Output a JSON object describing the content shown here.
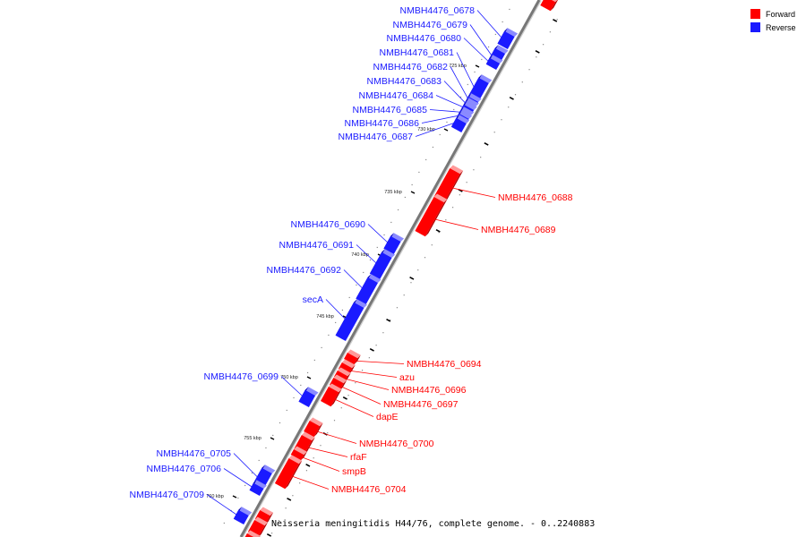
{
  "legend": {
    "forward": {
      "label": "Forward",
      "color": "#ff0000"
    },
    "reverse": {
      "label": "Reverse",
      "color": "#1a1aff"
    }
  },
  "caption": "Neisseria meningitidis H44/76, complete genome. - 0..2240883",
  "ticks": [
    "725 kbp",
    "730 kbp",
    "735 kbp",
    "740 kbp",
    "745 kbp",
    "750 kbp",
    "755 kbp",
    "760 kbp"
  ],
  "genes": [
    {
      "name": "NMBH4476_0678",
      "strand": "reverse"
    },
    {
      "name": "NMBH4476_0679",
      "strand": "reverse"
    },
    {
      "name": "NMBH4476_0680",
      "strand": "reverse"
    },
    {
      "name": "NMBH4476_0681",
      "strand": "reverse"
    },
    {
      "name": "NMBH4476_0682",
      "strand": "reverse"
    },
    {
      "name": "NMBH4476_0683",
      "strand": "reverse"
    },
    {
      "name": "NMBH4476_0684",
      "strand": "reverse"
    },
    {
      "name": "NMBH4476_0685",
      "strand": "reverse"
    },
    {
      "name": "NMBH4476_0686",
      "strand": "reverse"
    },
    {
      "name": "NMBH4476_0687",
      "strand": "reverse"
    },
    {
      "name": "NMBH4476_0688",
      "strand": "forward"
    },
    {
      "name": "NMBH4476_0689",
      "strand": "forward"
    },
    {
      "name": "NMBH4476_0690",
      "strand": "reverse"
    },
    {
      "name": "NMBH4476_0691",
      "strand": "reverse"
    },
    {
      "name": "NMBH4476_0692",
      "strand": "reverse"
    },
    {
      "name": "secA",
      "strand": "reverse"
    },
    {
      "name": "NMBH4476_0694",
      "strand": "forward"
    },
    {
      "name": "azu",
      "strand": "forward"
    },
    {
      "name": "NMBH4476_0696",
      "strand": "forward"
    },
    {
      "name": "NMBH4476_0697",
      "strand": "forward"
    },
    {
      "name": "dapE",
      "strand": "forward"
    },
    {
      "name": "NMBH4476_0699",
      "strand": "reverse"
    },
    {
      "name": "NMBH4476_0700",
      "strand": "forward"
    },
    {
      "name": "rfaF",
      "strand": "forward"
    },
    {
      "name": "smpB",
      "strand": "forward"
    },
    {
      "name": "NMBH4476_0704",
      "strand": "forward"
    },
    {
      "name": "NMBH4476_0705",
      "strand": "reverse"
    },
    {
      "name": "NMBH4476_0706",
      "strand": "reverse"
    },
    {
      "name": "NMBH4476_0709",
      "strand": "reverse"
    }
  ]
}
